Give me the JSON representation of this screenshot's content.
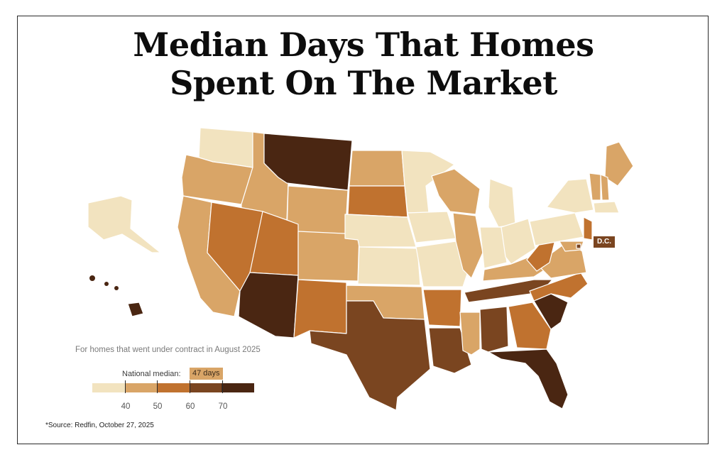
{
  "title": {
    "line1": "Median Days That Homes",
    "line2": "Spent On The Market"
  },
  "subtitle": "For homes that went under contract in August 2025",
  "median": {
    "label": "National median:",
    "value": "47 days"
  },
  "legend": {
    "ticks": [
      "40",
      "50",
      "60",
      "70"
    ],
    "colors": [
      "#f2e3bf",
      "#d9a567",
      "#c0722f",
      "#7a4520",
      "#4a2612"
    ]
  },
  "dc_label": "D.C.",
  "source": "*Source: Redfin, October 27, 2025",
  "palette": {
    "lightest": "#f2e3bf",
    "light": "#d9a567",
    "mid": "#c0722f",
    "dark": "#7a4520",
    "darkest": "#4a2612"
  },
  "states": {
    "WA": "lightest",
    "OR": "light",
    "CA": "light",
    "ID": "light",
    "NV": "mid",
    "MT": "darkest",
    "WY": "light",
    "UT": "mid",
    "AZ": "darkest",
    "CO": "light",
    "NM": "mid",
    "ND": "light",
    "SD": "mid",
    "NE": "lightest",
    "KS": "lightest",
    "OK": "light",
    "TX": "dark",
    "MN": "lightest",
    "IA": "lightest",
    "MO": "lightest",
    "AR": "mid",
    "LA": "dark",
    "WI": "light",
    "IL": "light",
    "MS": "light",
    "AL": "dark",
    "MI": "lightest",
    "IN": "lightest",
    "OH": "lightest",
    "KY": "light",
    "TN": "dark",
    "GA": "mid",
    "FL": "darkest",
    "SC": "darkest",
    "NC": "mid",
    "VA": "light",
    "WV": "mid",
    "PA": "lightest",
    "NY": "lightest",
    "ME": "light",
    "NH": "light",
    "VT": "light",
    "MA": "lightest",
    "NJ": "mid",
    "MD": "light",
    "AK": "lightest",
    "HI": "darkest",
    "DC": "dark"
  }
}
